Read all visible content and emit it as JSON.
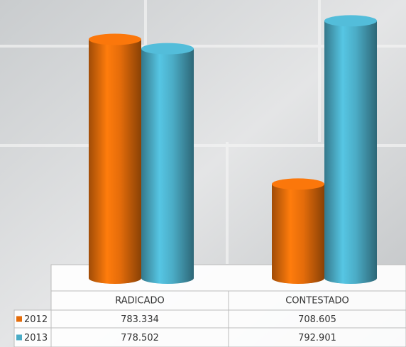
{
  "chart_data": {
    "type": "cylinder-bar",
    "categories": [
      "RADICADO",
      "CONTESTADO"
    ],
    "series": [
      {
        "name": "2012",
        "color": "#e46c0a",
        "values": [
          783334,
          708605
        ],
        "value_labels": [
          "783.334",
          "708.605"
        ]
      },
      {
        "name": "2013",
        "color": "#4bacc6",
        "values": [
          778502,
          792901
        ],
        "value_labels": [
          "778.502",
          "792.901"
        ]
      }
    ],
    "ylim": [
      660000,
      800000
    ]
  }
}
